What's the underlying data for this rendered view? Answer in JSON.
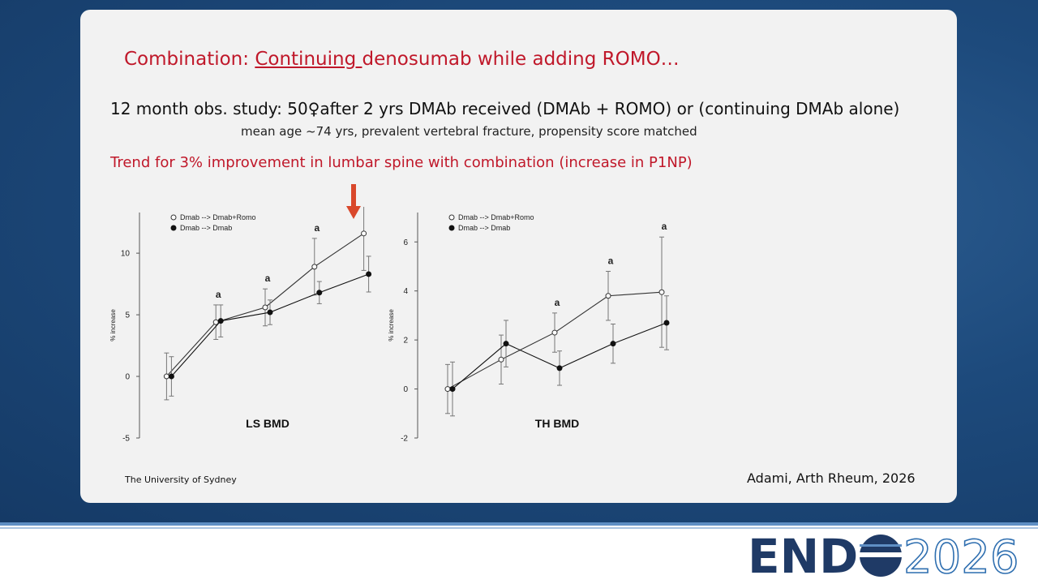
{
  "slide": {
    "title": [
      "Combination: ",
      "Continuing ",
      "denosumab while adding ROMO…"
    ],
    "study": "12 month obs. study: 50♀after 2 yrs DMAb received (DMAb + ROMO) or (continuing DMAb alone)",
    "population": "mean age ~74 yrs, prevalent vertebral fracture, propensity score matched",
    "finding": "Trend for 3% improvement in lumbar spine with combination (increase in P1NP)",
    "footer_left": "The University of Sydney",
    "citation": "Adami, Arth Rheum, 2026",
    "logo": [
      "END",
      "2026"
    ]
  },
  "chart_data": [
    {
      "type": "line",
      "title": "LS BMD",
      "y_label": "% increase",
      "categories": [
        null,
        null,
        null,
        null,
        null
      ],
      "series": [
        {
          "name": "Dmab --> Dmab+Romo",
          "color": "#333333",
          "marker": "open",
          "values": [
            0,
            4.4,
            5.6,
            8.9,
            11.6
          ],
          "errors": [
            1.9,
            1.4,
            1.5,
            2.3,
            3.0
          ]
        },
        {
          "name": "Dmab --> Dmab",
          "color": "#111111",
          "marker": "filled",
          "values": [
            0,
            4.5,
            5.2,
            6.8,
            8.3
          ],
          "errors": [
            1.6,
            1.3,
            1.0,
            0.9,
            1.45
          ]
        }
      ],
      "annotations": [
        null,
        "a",
        "a",
        "a",
        null
      ],
      "ylim": [
        -5,
        13.3
      ],
      "yticks": [
        -5,
        0,
        5,
        10
      ]
    },
    {
      "type": "line",
      "title": "TH BMD",
      "y_label": "% increase",
      "categories": [
        null,
        null,
        null,
        null,
        null
      ],
      "series": [
        {
          "name": "Dmab --> Dmab+Romo",
          "color": "#333333",
          "marker": "open",
          "values": [
            0,
            1.2,
            2.3,
            3.8,
            3.95
          ],
          "errors": [
            1.0,
            1.0,
            0.8,
            1.0,
            2.25
          ]
        },
        {
          "name": "Dmab --> Dmab",
          "color": "#111111",
          "marker": "filled",
          "values": [
            0,
            1.85,
            0.85,
            1.85,
            2.7
          ],
          "errors": [
            1.1,
            0.95,
            0.7,
            0.8,
            1.1
          ]
        }
      ],
      "annotations": [
        null,
        null,
        "a",
        "a",
        "a"
      ],
      "ylim": [
        -2,
        7.2
      ],
      "yticks": [
        -2,
        0,
        2,
        4,
        6
      ]
    }
  ]
}
